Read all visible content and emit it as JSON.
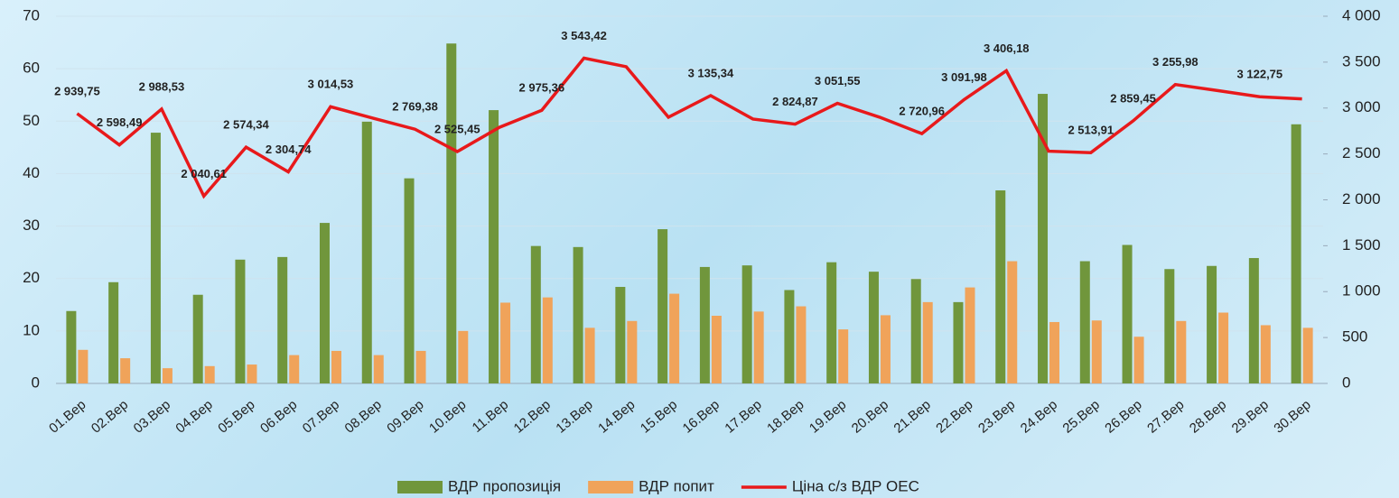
{
  "chart_data": {
    "type": "bar_line",
    "categories": [
      "01.Вер",
      "02.Вер",
      "03.Вер",
      "04.Вер",
      "05.Вер",
      "06.Вер",
      "07.Вер",
      "08.Вер",
      "09.Вер",
      "10.Вер",
      "11.Вер",
      "12.Вер",
      "13.Вер",
      "14.Вер",
      "15.Вер",
      "16.Вер",
      "17.Вер",
      "18.Вер",
      "19.Вер",
      "20.Вер",
      "21.Вер",
      "22.Вер",
      "23.Вер",
      "24.Вер",
      "25.Вер",
      "26.Вер",
      "27.Вер",
      "28.Вер",
      "29.Вер",
      "30.Вер"
    ],
    "series": [
      {
        "name": "ВДР пропозиція",
        "color": "#70963c",
        "type": "bar",
        "values": [
          13.8,
          19.3,
          47.8,
          16.9,
          23.6,
          24.1,
          30.6,
          49.9,
          39.1,
          64.8,
          52.1,
          26.2,
          26.0,
          18.4,
          29.4,
          22.2,
          22.5,
          17.8,
          23.1,
          21.3,
          19.9,
          15.5,
          36.8,
          55.2,
          23.3,
          26.4,
          21.8,
          22.4,
          23.9,
          49.4
        ]
      },
      {
        "name": "ВДР попит",
        "color": "#f0a35a",
        "type": "bar",
        "values": [
          6.4,
          4.8,
          2.9,
          3.3,
          3.6,
          5.4,
          6.2,
          5.4,
          6.2,
          10.0,
          15.4,
          16.4,
          10.6,
          11.9,
          17.1,
          12.9,
          13.7,
          14.7,
          10.3,
          13.0,
          15.5,
          18.3,
          23.3,
          11.7,
          12.0,
          8.9,
          11.9,
          13.5,
          11.1,
          10.6
        ]
      },
      {
        "name": "Ціна с/з ВДР ОЕС",
        "color": "#e8191b",
        "type": "line",
        "axis": "y2",
        "values": [
          2939.75,
          2598.49,
          2988.53,
          2040.61,
          2574.34,
          2304.74,
          3014.53,
          2890,
          2769.38,
          2525.45,
          2790,
          2975.36,
          3543.42,
          3450,
          2900,
          3135.34,
          2880,
          2824.87,
          3051.55,
          2900,
          2720.96,
          3091.98,
          3406.18,
          2530,
          2513.91,
          2859.45,
          3255.98,
          3190,
          3122.75,
          3100
        ],
        "value_labels": [
          "2 939,75",
          "2 598,49",
          "2 988,53",
          "2 040,61",
          "2 574,34",
          "2 304,74",
          "3 014,53",
          null,
          "2 769,38",
          "2 525,45",
          null,
          "2 975,36",
          "3 543,42",
          null,
          null,
          "3 135,34",
          null,
          "2 824,87",
          "3 051,55",
          null,
          "2 720,96",
          "3 091,98",
          "3 406,18",
          null,
          "2 513,91",
          "2 859,45",
          "3 255,98",
          null,
          "3 122,75",
          null
        ]
      }
    ],
    "ylim": [
      0,
      70
    ],
    "yticks": [
      0,
      10,
      20,
      30,
      40,
      50,
      60,
      70
    ],
    "y2lim": [
      0,
      4000
    ],
    "y2ticks": [
      0,
      500,
      {
        "value": 1000,
        "label": "1 000"
      },
      {
        "value": 1500,
        "label": "1 500"
      },
      {
        "value": 2000,
        "label": "2 000"
      },
      {
        "value": 2500,
        "label": "2 500"
      },
      {
        "value": 3000,
        "label": "3 000"
      },
      {
        "value": 3500,
        "label": "3 500"
      },
      {
        "value": 4000,
        "label": "4 000"
      }
    ],
    "grid": true,
    "legend": "bottom"
  }
}
